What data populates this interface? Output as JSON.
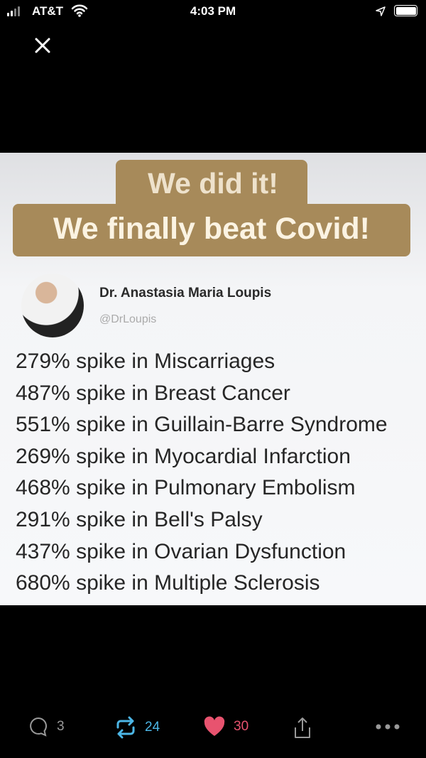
{
  "status_bar": {
    "carrier": "AT&T",
    "time": "4:03 PM"
  },
  "image": {
    "banner_line1": "We did it!",
    "banner_line2": "We finally beat Covid!",
    "author_name": "Dr. Anastasia Maria Loupis",
    "author_handle": "@DrLoupis",
    "lines": [
      "279% spike in Miscarriages",
      "487% spike in Breast Cancer",
      "551% spike in Guillain-Barre Syndrome",
      "269% spike in Myocardial Infarction",
      "468% spike in Pulmonary Embolism",
      "291% spike in Bell's Palsy",
      "437% spike in Ovarian Dysfunction",
      "680% spike in Multiple Sclerosis"
    ],
    "banner_color": "#a78a5a"
  },
  "actions": {
    "replies": "3",
    "retweets": "24",
    "likes": "30",
    "retweet_color": "#4cb6e6",
    "like_color": "#e8536f"
  }
}
